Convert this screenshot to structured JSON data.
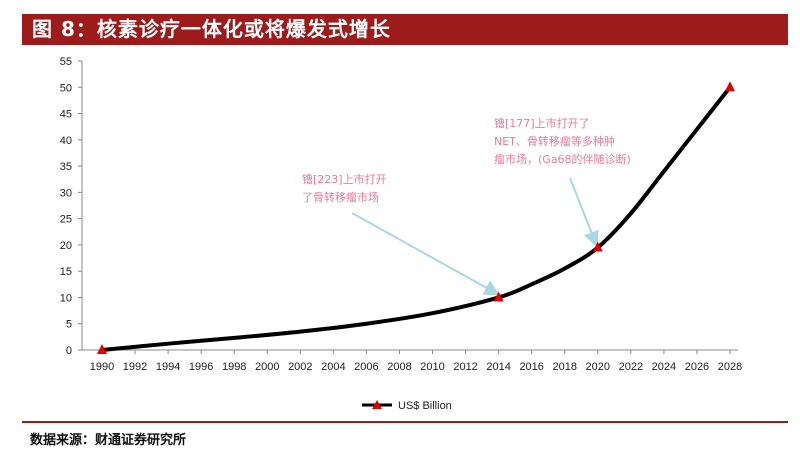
{
  "header": {
    "title": "图 8：核素诊疗一体化或将爆发式增长"
  },
  "footer": {
    "source": "数据来源：财通证券研究所"
  },
  "colors": {
    "header_bg": "#9e1b1b",
    "line": "#000000",
    "marker": "#e00000",
    "annotation": "#f07a98",
    "arrow": "#a8d8e0"
  },
  "chart_data": {
    "type": "line",
    "title": "",
    "xlabel": "",
    "ylabel": "",
    "ylim": [
      0,
      55
    ],
    "yticks": [
      0,
      5,
      10,
      15,
      20,
      25,
      30,
      35,
      40,
      45,
      50,
      55
    ],
    "xlim": [
      1990,
      2028
    ],
    "xticks": [
      1990,
      1992,
      1994,
      1996,
      1998,
      2000,
      2002,
      2004,
      2006,
      2008,
      2010,
      2012,
      2014,
      2016,
      2018,
      2020,
      2022,
      2024,
      2026,
      2028
    ],
    "grid": false,
    "legend_position": "bottom",
    "series": [
      {
        "name": "US$ Billion",
        "x": [
          1990,
          1994,
          1998,
          2002,
          2006,
          2010,
          2014,
          2016,
          2018,
          2020,
          2022,
          2024,
          2026,
          2028
        ],
        "values": [
          0,
          1.2,
          2.3,
          3.5,
          5.0,
          7.0,
          10,
          12.5,
          15.5,
          19.5,
          26,
          34,
          42,
          50
        ],
        "markers": [
          {
            "x": 1990,
            "y": 0
          },
          {
            "x": 2014,
            "y": 10
          },
          {
            "x": 2020,
            "y": 19.5
          },
          {
            "x": 2028,
            "y": 50
          }
        ]
      }
    ],
    "annotations": [
      {
        "lines": [
          "镥[223]上市打开",
          "了骨转移瘤市场"
        ],
        "target_x": 2014,
        "target_y": 10
      },
      {
        "lines": [
          "镥[177]上市打开了",
          "NET、骨转移瘤等多种肿",
          "瘤市场，(Ga68的伴随诊断)"
        ],
        "target_x": 2020,
        "target_y": 19.5
      }
    ]
  }
}
